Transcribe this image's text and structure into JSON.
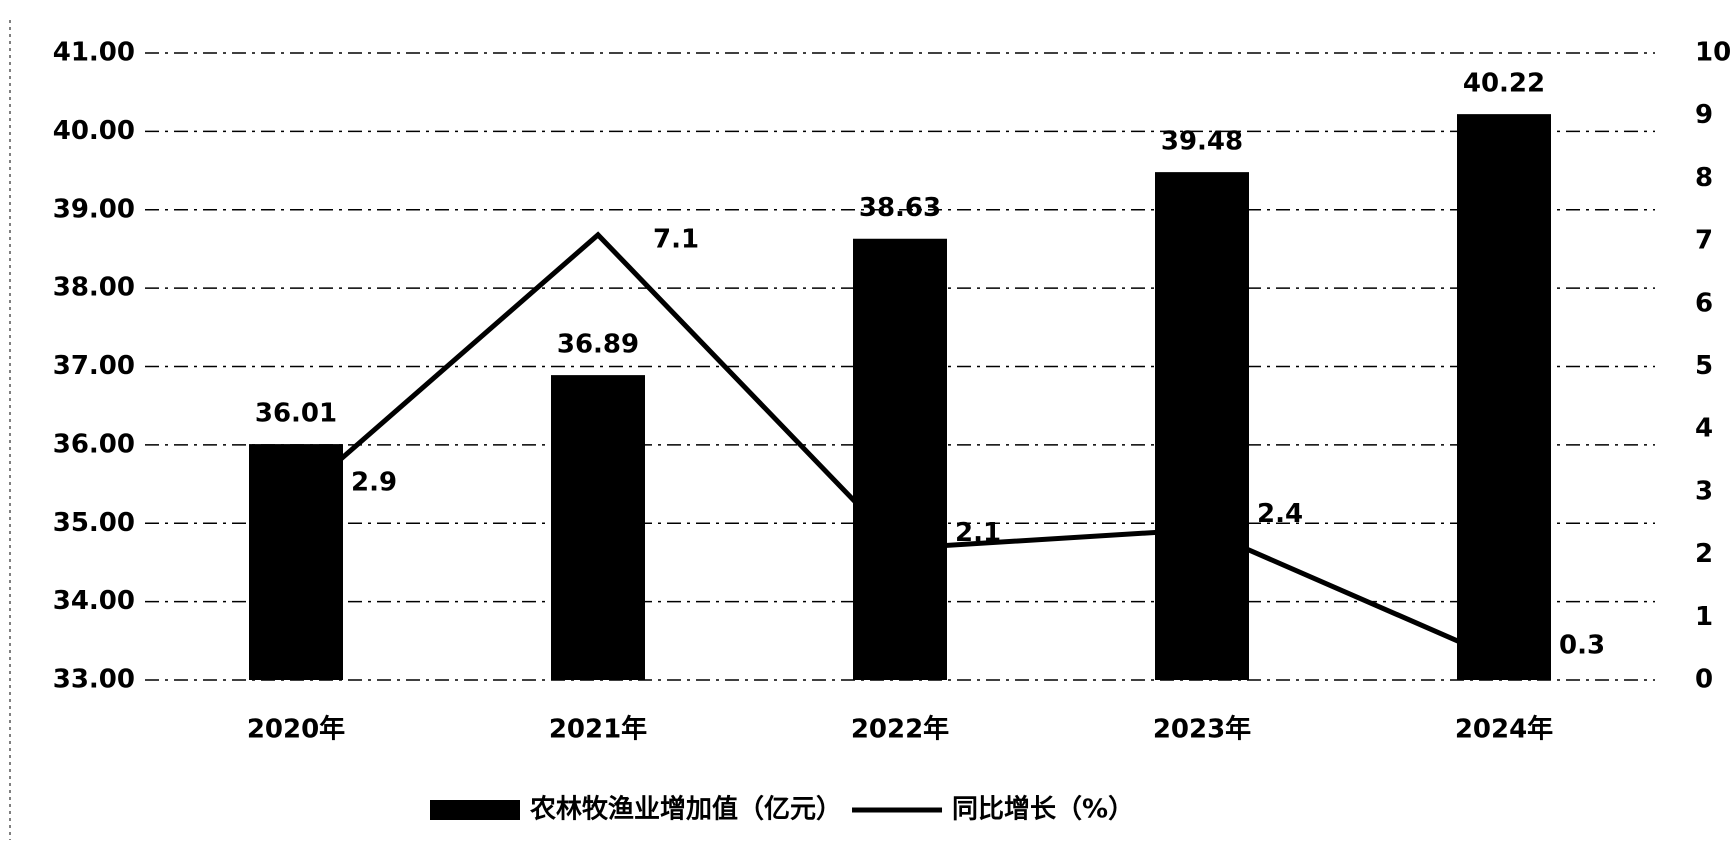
{
  "chart_data": {
    "type": "combo",
    "categories": [
      "2020年",
      "2021年",
      "2022年",
      "2023年",
      "2024年"
    ],
    "series": [
      {
        "name": "农林牧渔业增加值（亿元）",
        "type": "bar",
        "color": "#000000",
        "values": [
          36.01,
          36.89,
          38.63,
          39.48,
          40.22
        ]
      },
      {
        "name": "同比增长（%）",
        "type": "line",
        "axis": "y2",
        "color": "#000000",
        "values": [
          2.9,
          7.1,
          2.1,
          2.4,
          0.3
        ]
      }
    ],
    "ylim": [
      33,
      41
    ],
    "yticks": [
      {
        "value": 33,
        "label": "33.00"
      },
      {
        "value": 34,
        "label": "34.00"
      },
      {
        "value": 35,
        "label": "35.00"
      },
      {
        "value": 36,
        "label": "36.00"
      },
      {
        "value": 37,
        "label": "37.00"
      },
      {
        "value": 38,
        "label": "38.00"
      },
      {
        "value": 39,
        "label": "39.00"
      },
      {
        "value": 40,
        "label": "40.00"
      },
      {
        "value": 41,
        "label": "41.00"
      }
    ],
    "y2lim": [
      0,
      10
    ],
    "y2ticks": [
      0,
      1,
      2,
      3,
      4,
      5,
      6,
      7,
      8,
      9,
      10
    ],
    "grid": true,
    "legend": "bottom"
  }
}
